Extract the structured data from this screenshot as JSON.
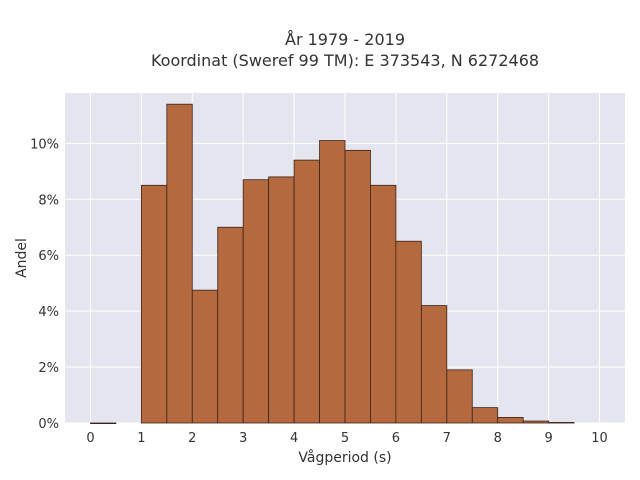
{
  "chart_data": {
    "type": "bar",
    "title": "År 1979 - 2019",
    "subtitle": "Koordinat (Sweref 99 TM): E 373543, N 6272468",
    "xlabel": "Vågperiod (s)",
    "ylabel": "Andel",
    "bin_width": 0.5,
    "bins": [
      {
        "x0": 0.0,
        "value": 0.0
      },
      {
        "x0": 1.0,
        "value": 8.5
      },
      {
        "x0": 1.5,
        "value": 11.4
      },
      {
        "x0": 2.0,
        "value": 4.75
      },
      {
        "x0": 2.5,
        "value": 7.0
      },
      {
        "x0": 3.0,
        "value": 8.7
      },
      {
        "x0": 3.5,
        "value": 8.8
      },
      {
        "x0": 4.0,
        "value": 9.4
      },
      {
        "x0": 4.5,
        "value": 10.1
      },
      {
        "x0": 5.0,
        "value": 9.75
      },
      {
        "x0": 5.5,
        "value": 8.5
      },
      {
        "x0": 6.0,
        "value": 6.5
      },
      {
        "x0": 6.5,
        "value": 4.2
      },
      {
        "x0": 7.0,
        "value": 1.9
      },
      {
        "x0": 7.5,
        "value": 0.55
      },
      {
        "x0": 8.0,
        "value": 0.2
      },
      {
        "x0": 8.5,
        "value": 0.07
      },
      {
        "x0": 9.0,
        "value": 0.02
      }
    ],
    "xlim": [
      -0.5,
      10.5
    ],
    "ylim": [
      0,
      11.8
    ],
    "xticks": [
      0,
      1,
      2,
      3,
      4,
      5,
      6,
      7,
      8,
      9,
      10
    ],
    "xtick_labels": [
      "0",
      "1",
      "2",
      "3",
      "4",
      "5",
      "6",
      "7",
      "8",
      "9",
      "10"
    ],
    "yticks": [
      0,
      2,
      4,
      6,
      8,
      10
    ],
    "ytick_labels": [
      "0%",
      "2%",
      "4%",
      "6%",
      "8%",
      "10%"
    ],
    "grid": true,
    "colors": {
      "bar_fill": "#b5693f",
      "bar_edge": "#3a2418",
      "plot_bg": "#e5e5ef",
      "grid": "#ffffff"
    }
  }
}
